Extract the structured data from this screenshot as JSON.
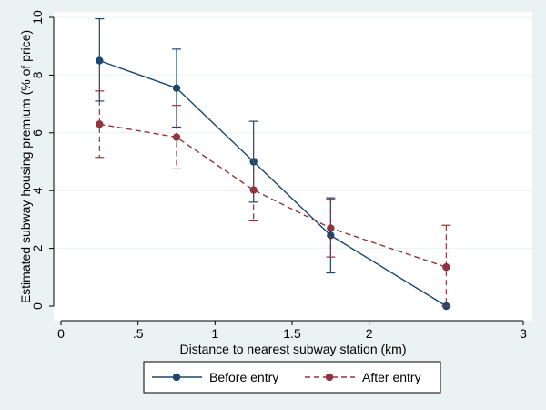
{
  "chart_data": {
    "type": "line",
    "title": "",
    "xlabel": "Distance to nearest subway station (km)",
    "ylabel": "Estimated subway housing premium (% of price)",
    "xlim": [
      0,
      3
    ],
    "ylim": [
      0,
      10
    ],
    "x_ticks": [
      {
        "value": 0,
        "label": "0"
      },
      {
        "value": 0.5,
        "label": ".5"
      },
      {
        "value": 1,
        "label": "1"
      },
      {
        "value": 1.5,
        "label": "1.5"
      },
      {
        "value": 2,
        "label": "2"
      },
      {
        "value": 3,
        "label": "3"
      }
    ],
    "y_ticks": [
      {
        "value": 0,
        "label": "0"
      },
      {
        "value": 2,
        "label": "2"
      },
      {
        "value": 4,
        "label": "4"
      },
      {
        "value": 6,
        "label": "6"
      },
      {
        "value": 8,
        "label": "8"
      },
      {
        "value": 10,
        "label": "10"
      }
    ],
    "grid": "horizontal",
    "legend_position": "bottom",
    "series": [
      {
        "name": "Before entry",
        "color": "#1a476f",
        "line_style": "solid",
        "x": [
          0.25,
          0.75,
          1.25,
          1.75,
          2.5
        ],
        "y": [
          8.5,
          7.55,
          5.0,
          2.45,
          0.0
        ],
        "ci_low": [
          7.1,
          6.2,
          3.6,
          1.15,
          0.0
        ],
        "ci_high": [
          9.95,
          8.9,
          6.4,
          3.75,
          0.0
        ]
      },
      {
        "name": "After entry",
        "color": "#90353b",
        "line_style": "dashed",
        "x": [
          0.25,
          0.75,
          1.25,
          1.75,
          2.5
        ],
        "y": [
          6.3,
          5.85,
          4.02,
          2.7,
          1.35
        ],
        "ci_low": [
          5.15,
          4.75,
          2.95,
          1.7,
          0.0
        ],
        "ci_high": [
          7.45,
          6.95,
          5.1,
          3.7,
          2.8
        ]
      }
    ]
  }
}
